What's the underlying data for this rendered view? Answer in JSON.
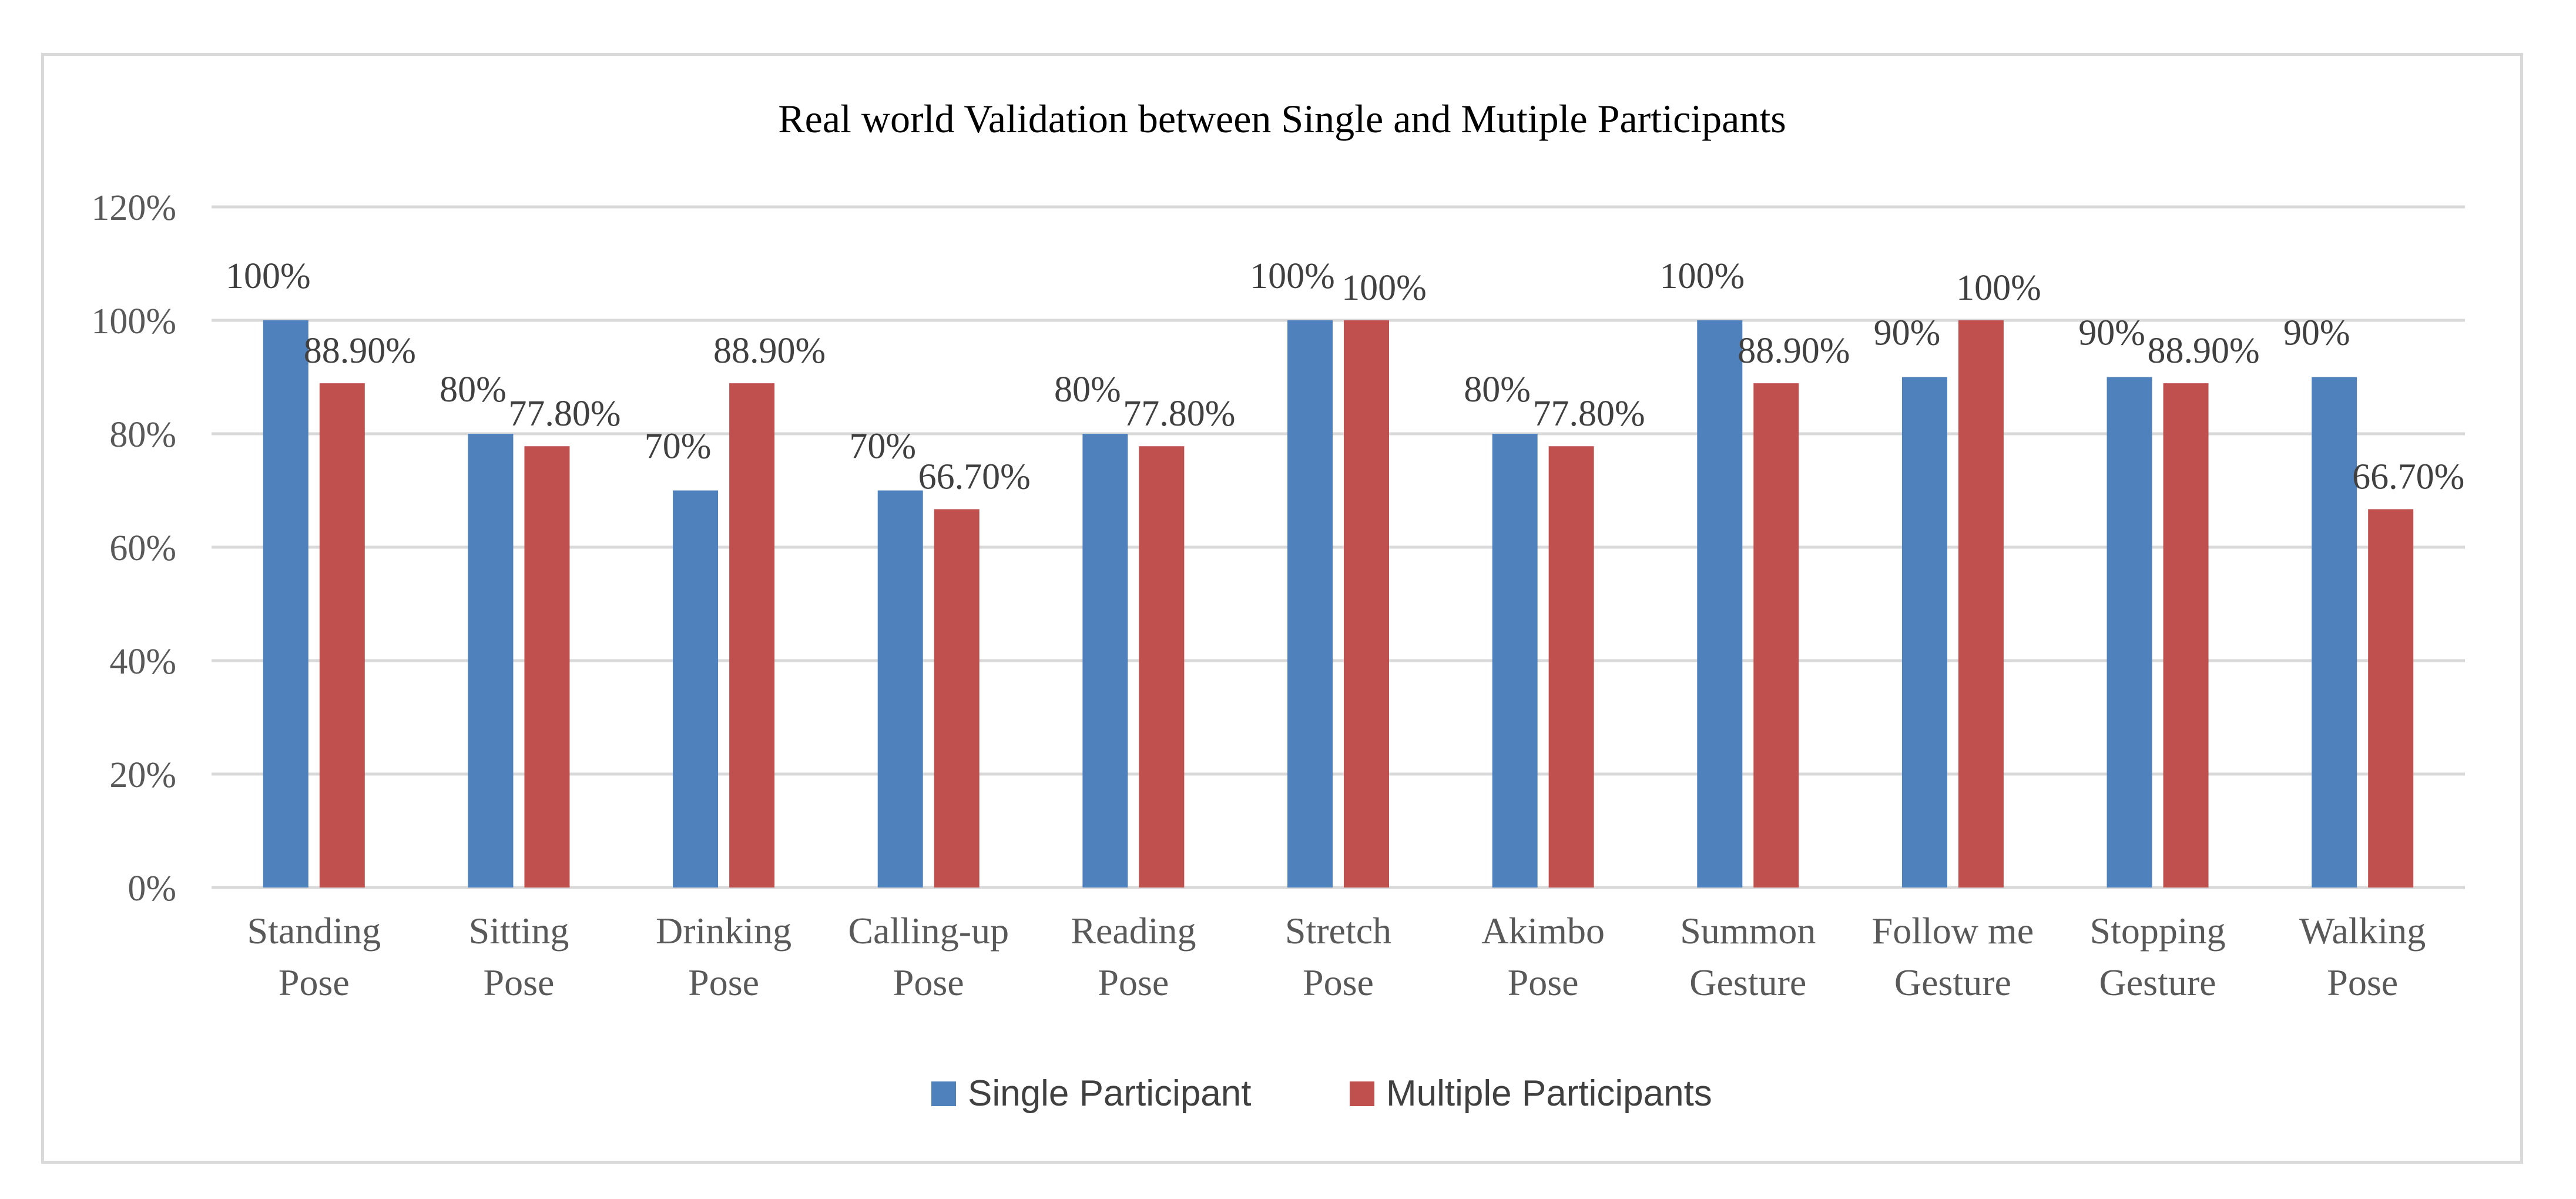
{
  "chart_data": {
    "type": "bar",
    "title": "Real world Validation between Single and Mutiple Participants",
    "xlabel": "",
    "ylabel": "",
    "ylim": [
      0,
      1.2
    ],
    "yticks": [
      "0%",
      "20%",
      "40%",
      "60%",
      "80%",
      "100%",
      "120%"
    ],
    "grid": true,
    "legend_position": "bottom",
    "categories": [
      [
        "Standing",
        "Pose"
      ],
      [
        "Sitting",
        "Pose"
      ],
      [
        "Drinking",
        "Pose"
      ],
      [
        "Calling-up",
        "Pose"
      ],
      [
        "Reading",
        "Pose"
      ],
      [
        "Stretch",
        "Pose"
      ],
      [
        "Akimbo",
        "Pose"
      ],
      [
        "Summon",
        "Gesture"
      ],
      [
        "Follow me",
        "Gesture"
      ],
      [
        "Stopping",
        "Gesture"
      ],
      [
        "Walking",
        "Pose"
      ]
    ],
    "series": [
      {
        "name": "Single Participant",
        "color": "#4f81bd",
        "values": [
          1.0,
          0.8,
          0.7,
          0.7,
          0.8,
          1.0,
          0.8,
          1.0,
          0.9,
          0.9,
          0.9
        ],
        "labels": [
          "100%",
          "80%",
          "70%",
          "70%",
          "80%",
          "100%",
          "80%",
          "100%",
          "90%",
          "90%",
          "90%"
        ]
      },
      {
        "name": "Multiple Participants",
        "color": "#c0504d",
        "values": [
          0.889,
          0.778,
          0.889,
          0.667,
          0.778,
          1.0,
          0.778,
          0.889,
          1.0,
          0.889,
          0.667
        ],
        "labels": [
          "88.90%",
          "77.80%",
          "88.90%",
          "66.70%",
          "77.80%",
          "100%",
          "77.80%",
          "88.90%",
          "100%",
          "88.90%",
          "66.70%"
        ]
      }
    ]
  }
}
